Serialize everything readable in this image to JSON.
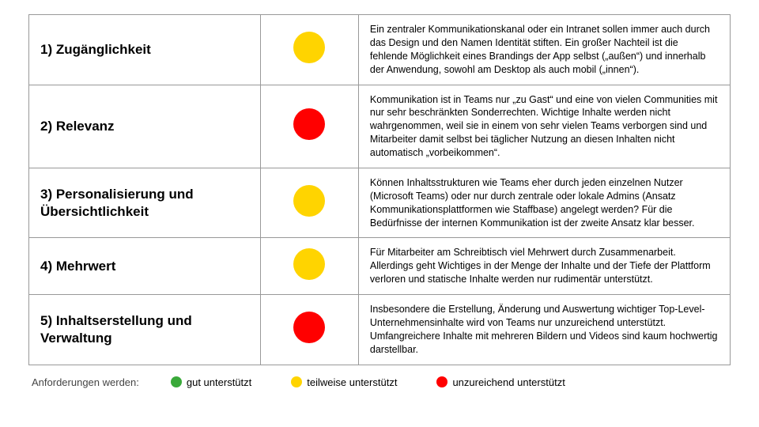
{
  "colors": {
    "green": "#3aa93a",
    "yellow": "#ffd400",
    "red": "#ff0000",
    "border": "#999999",
    "bg": "#ffffff"
  },
  "rows": [
    {
      "title": "1) Zugänglichkeit",
      "status": "yellow",
      "desc": "Ein zentraler Kommunikationskanal oder ein Intranet sollen immer auch durch das Design und den Namen Identität stiften. Ein großer Nachteil ist die fehlende Möglichkeit eines Brandings der App selbst („außen“) und innerhalb der Anwendung, sowohl am Desktop als auch mobil („innen“)."
    },
    {
      "title": "2) Relevanz",
      "status": "red",
      "desc": "Kommunikation ist in Teams nur „zu Gast“ und eine von vielen Communities mit nur sehr beschränkten Sonderrechten. Wichtige Inhalte werden nicht wahrgenommen, weil sie in einem von sehr vielen Teams verborgen sind und Mitarbeiter damit selbst bei täglicher Nutzung an diesen Inhalten nicht automatisch „vorbeikommen“."
    },
    {
      "title": "3) Personalisierung und Übersichtlichkeit",
      "status": "yellow",
      "desc": "Können Inhaltsstrukturen wie Teams eher durch jeden einzelnen Nutzer (Microsoft Teams) oder nur durch zentrale oder lokale Admins (Ansatz Kommunikationsplattformen wie Staffbase) angelegt werden? Für die Bedürfnisse der internen Kommunikation ist der zweite Ansatz klar besser."
    },
    {
      "title": "4) Mehrwert",
      "status": "yellow",
      "desc": "Für Mitarbeiter am Schreibtisch viel Mehrwert durch Zusammenarbeit. Allerdings geht Wichtiges in der Menge der Inhalte und der Tiefe der Plattform verloren und statische Inhalte werden nur rudimentär unterstützt."
    },
    {
      "title": "5) Inhaltserstellung und Verwaltung",
      "status": "red",
      "desc": "Insbesondere die Erstellung,  Änderung und Auswertung wichtiger Top-Level-Unternehmensinhalte wird von Teams nur unzureichend unterstützt. Umfangreichere Inhalte mit mehreren Bildern und Videos sind kaum hochwertig darstellbar."
    }
  ],
  "legend": {
    "label": "Anforderungen werden:",
    "items": [
      {
        "color": "green",
        "text": "gut unterstützt"
      },
      {
        "color": "yellow",
        "text": "teilweise unterstützt"
      },
      {
        "color": "red",
        "text": "unzureichend unterstützt"
      }
    ]
  }
}
